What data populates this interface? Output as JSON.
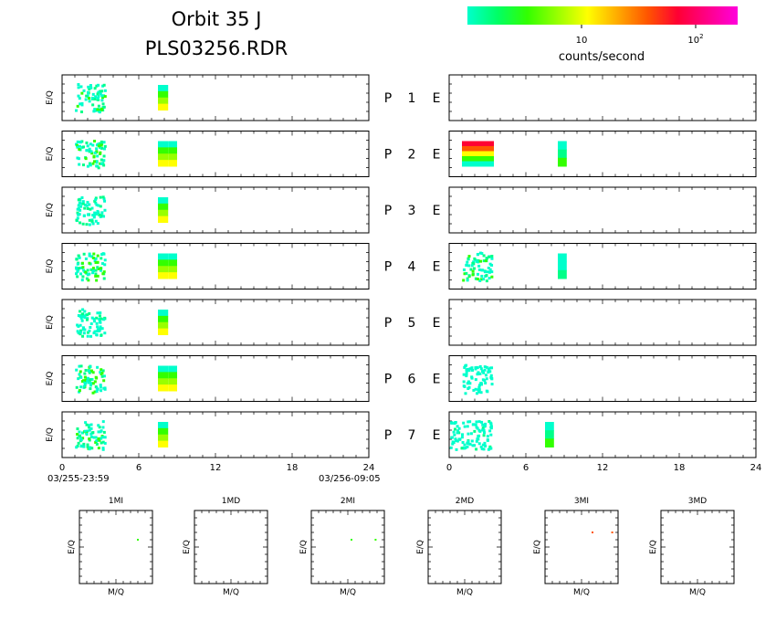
{
  "header": {
    "title_line1": "Orbit 35 J",
    "title_line2": "PLS03256.RDR"
  },
  "colorbar": {
    "colors": [
      "#00ffcc",
      "#00ff66",
      "#33ff00",
      "#99ff00",
      "#ffff00",
      "#ffaa00",
      "#ff5500",
      "#ff0033",
      "#ff0088",
      "#ff00dd"
    ],
    "tick_1": "10",
    "tick_2": "10",
    "tick_2_exp": "2",
    "label": "counts/second"
  },
  "panel_ylabel": "E/Q",
  "channel_labels": [
    {
      "p": "P",
      "n": "1",
      "e": "E"
    },
    {
      "p": "P",
      "n": "2",
      "e": "E"
    },
    {
      "p": "P",
      "n": "3",
      "e": "E"
    },
    {
      "p": "P",
      "n": "4",
      "e": "E"
    },
    {
      "p": "P",
      "n": "5",
      "e": "E"
    },
    {
      "p": "P",
      "n": "6",
      "e": "E"
    },
    {
      "p": "P",
      "n": "7",
      "e": "E"
    }
  ],
  "xaxis": {
    "ticks": [
      "0",
      "6",
      "12",
      "18",
      "24"
    ],
    "start_time": "03/255-23:59",
    "end_time": "03/256-09:05"
  },
  "mq_panels": [
    {
      "title": "1MI",
      "ylabel": "E/Q",
      "xlabel": "M/Q"
    },
    {
      "title": "1MD",
      "ylabel": "E/Q",
      "xlabel": "M/Q"
    },
    {
      "title": "2MI",
      "ylabel": "E/Q",
      "xlabel": "M/Q"
    },
    {
      "title": "2MD",
      "ylabel": "E/Q",
      "xlabel": "M/Q"
    },
    {
      "title": "3MI",
      "ylabel": "E/Q",
      "xlabel": "M/Q"
    },
    {
      "title": "3MD",
      "ylabel": "E/Q",
      "xlabel": "M/Q"
    }
  ],
  "chart_data": {
    "type": "heatmap",
    "title": "Orbit 35 J PLS03256.RDR",
    "colorbar_label": "counts/second",
    "x_range_hours": [
      0,
      24
    ],
    "x_ticks": [
      0,
      6,
      12,
      18,
      24
    ],
    "left_column": [
      {
        "channel": "P 1",
        "bursts": [
          {
            "x0": 1.0,
            "x1": 3.5,
            "intensity": "low-mid"
          },
          {
            "x0": 7.5,
            "x1": 8.3,
            "intensity": "mid"
          }
        ]
      },
      {
        "channel": "P 2",
        "bursts": [
          {
            "x0": 1.0,
            "x1": 3.5,
            "intensity": "low-mid"
          },
          {
            "x0": 7.5,
            "x1": 8.3,
            "intensity": "mid"
          },
          {
            "x0": 8.3,
            "x1": 9.0,
            "intensity": "mid"
          }
        ]
      },
      {
        "channel": "P 3",
        "bursts": [
          {
            "x0": 1.0,
            "x1": 3.5,
            "intensity": "low"
          },
          {
            "x0": 7.5,
            "x1": 8.3,
            "intensity": "mid"
          }
        ]
      },
      {
        "channel": "P 4",
        "bursts": [
          {
            "x0": 1.0,
            "x1": 3.5,
            "intensity": "low-mid"
          },
          {
            "x0": 7.5,
            "x1": 8.3,
            "intensity": "mid"
          },
          {
            "x0": 8.3,
            "x1": 9.0,
            "intensity": "mid"
          }
        ]
      },
      {
        "channel": "P 5",
        "bursts": [
          {
            "x0": 1.0,
            "x1": 3.5,
            "intensity": "low"
          },
          {
            "x0": 7.5,
            "x1": 8.3,
            "intensity": "mid"
          }
        ]
      },
      {
        "channel": "P 6",
        "bursts": [
          {
            "x0": 1.0,
            "x1": 3.5,
            "intensity": "low-mid"
          },
          {
            "x0": 7.5,
            "x1": 8.3,
            "intensity": "mid"
          },
          {
            "x0": 8.3,
            "x1": 9.0,
            "intensity": "mid"
          }
        ]
      },
      {
        "channel": "P 7",
        "bursts": [
          {
            "x0": 1.0,
            "x1": 3.5,
            "intensity": "low-mid"
          },
          {
            "x0": 7.5,
            "x1": 8.3,
            "intensity": "mid"
          }
        ]
      }
    ],
    "right_column": [
      {
        "channel": "E 1",
        "bursts": []
      },
      {
        "channel": "E 2",
        "bursts": [
          {
            "x0": 1.0,
            "x1": 3.5,
            "intensity": "high"
          },
          {
            "x0": 8.5,
            "x1": 9.2,
            "intensity": "low-mid"
          }
        ]
      },
      {
        "channel": "E 3",
        "bursts": []
      },
      {
        "channel": "E 4",
        "bursts": [
          {
            "x0": 1.0,
            "x1": 3.5,
            "intensity": "low-mid"
          },
          {
            "x0": 8.5,
            "x1": 9.2,
            "intensity": "low"
          }
        ]
      },
      {
        "channel": "E 5",
        "bursts": []
      },
      {
        "channel": "E 6",
        "bursts": [
          {
            "x0": 1.0,
            "x1": 3.5,
            "intensity": "trace"
          }
        ]
      },
      {
        "channel": "E 7",
        "bursts": [
          {
            "x0": 0.0,
            "x1": 3.5,
            "intensity": "low"
          },
          {
            "x0": 7.5,
            "x1": 8.2,
            "intensity": "low-mid"
          }
        ]
      }
    ],
    "mq_points": [
      {
        "panel": "1MI",
        "points": [
          {
            "x": 0.8,
            "y": 0.4,
            "color": "#33ff00"
          }
        ]
      },
      {
        "panel": "1MD",
        "points": []
      },
      {
        "panel": "2MI",
        "points": [
          {
            "x": 0.55,
            "y": 0.4,
            "color": "#33ff00"
          },
          {
            "x": 0.88,
            "y": 0.4,
            "color": "#33ff00"
          }
        ]
      },
      {
        "panel": "2MD",
        "points": []
      },
      {
        "panel": "3MI",
        "points": [
          {
            "x": 0.65,
            "y": 0.3,
            "color": "#ff5500"
          },
          {
            "x": 0.92,
            "y": 0.3,
            "color": "#ff5500"
          }
        ]
      },
      {
        "panel": "3MD",
        "points": []
      }
    ]
  }
}
